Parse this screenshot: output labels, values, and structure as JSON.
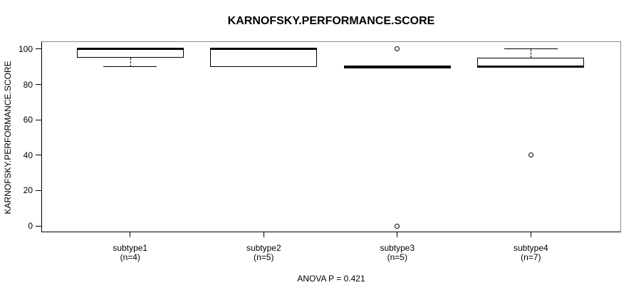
{
  "figure": {
    "title": "KARNOFSKY.PERFORMANCE.SCORE",
    "footer": "ANOVA P = 0.421"
  },
  "colors": {
    "background": "#ffffff",
    "box_stroke": "#000000",
    "box_fill": "#ffffff",
    "frame_shadow": "#8a8a8a",
    "text": "#000000"
  },
  "chart_data": {
    "type": "box",
    "title": "KARNOFSKY.PERFORMANCE.SCORE",
    "xlabel": "",
    "ylabel": "KARNOFSKY.PERFORMANCE.SCORE",
    "annotation": "ANOVA P = 0.421",
    "grid": false,
    "legend": null,
    "ylim": [
      -3.2,
      104
    ],
    "xlim": [
      0.34,
      4.67
    ],
    "yticks": [
      0,
      20,
      40,
      60,
      80,
      100
    ],
    "box_width": 0.8,
    "cap_width": 0.4,
    "groups": [
      {
        "x": 1,
        "label": "subtype1",
        "sublabel": "(n=4)",
        "q1": 95,
        "median": 100,
        "q3": 100,
        "whisker_low": 90,
        "whisker_high": 100,
        "outliers": []
      },
      {
        "x": 2,
        "label": "subtype2",
        "sublabel": "(n=5)",
        "q1": 90,
        "median": 100,
        "q3": 100,
        "whisker_low": 90,
        "whisker_high": 100,
        "outliers": []
      },
      {
        "x": 3,
        "label": "subtype3",
        "sublabel": "(n=5)",
        "q1": 90,
        "median": 90,
        "q3": 90,
        "whisker_low": 90,
        "whisker_high": 90,
        "outliers": [
          100,
          0
        ]
      },
      {
        "x": 4,
        "label": "subtype4",
        "sublabel": "(n=7)",
        "q1": 90,
        "median": 90,
        "q3": 95,
        "whisker_low": 90,
        "whisker_high": 100,
        "outliers": [
          40
        ]
      }
    ]
  }
}
